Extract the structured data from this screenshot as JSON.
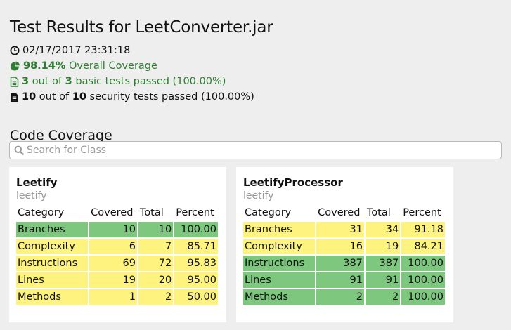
{
  "page": {
    "title": "Test Results for LeetConverter.jar"
  },
  "stats": {
    "timestamp": "02/17/2017 23:31:18",
    "coverage_value": "98.14%",
    "coverage_label": "Overall Coverage",
    "basic_passed": "3",
    "basic_mid": "out of",
    "basic_total": "3",
    "basic_suffix": "basic tests passed (100.00%)",
    "security_passed": "10",
    "security_mid": "out of",
    "security_total": "10",
    "security_suffix": "security tests passed (100.00%)"
  },
  "coverage": {
    "heading": "Code Coverage",
    "search_placeholder": "Search for Class",
    "columns": {
      "category": "Category",
      "covered": "Covered",
      "total": "Total",
      "percent": "Percent"
    },
    "classes": [
      {
        "name": "Leetify",
        "package": "leetify",
        "rows": [
          {
            "category": "Branches",
            "covered": "10",
            "total": "10",
            "percent": "100.00",
            "status": "ok"
          },
          {
            "category": "Complexity",
            "covered": "6",
            "total": "7",
            "percent": "85.71",
            "status": "warn"
          },
          {
            "category": "Instructions",
            "covered": "69",
            "total": "72",
            "percent": "95.83",
            "status": "warn"
          },
          {
            "category": "Lines",
            "covered": "19",
            "total": "20",
            "percent": "95.00",
            "status": "warn"
          },
          {
            "category": "Methods",
            "covered": "1",
            "total": "2",
            "percent": "50.00",
            "status": "warn"
          }
        ]
      },
      {
        "name": "LeetifyProcessor",
        "package": "leetify",
        "rows": [
          {
            "category": "Branches",
            "covered": "31",
            "total": "34",
            "percent": "91.18",
            "status": "warn"
          },
          {
            "category": "Complexity",
            "covered": "16",
            "total": "19",
            "percent": "84.21",
            "status": "warn"
          },
          {
            "category": "Instructions",
            "covered": "387",
            "total": "387",
            "percent": "100.00",
            "status": "ok"
          },
          {
            "category": "Lines",
            "covered": "91",
            "total": "91",
            "percent": "100.00",
            "status": "ok"
          },
          {
            "category": "Methods",
            "covered": "2",
            "total": "2",
            "percent": "100.00",
            "status": "ok"
          }
        ]
      }
    ]
  },
  "colors": {
    "ok": "#7dc77f",
    "warn": "#fff37f",
    "accent_green": "#2e7d32"
  },
  "icons": [
    "clock-icon",
    "pie-chart-icon",
    "document-icon",
    "document-filled-icon",
    "search-icon"
  ]
}
